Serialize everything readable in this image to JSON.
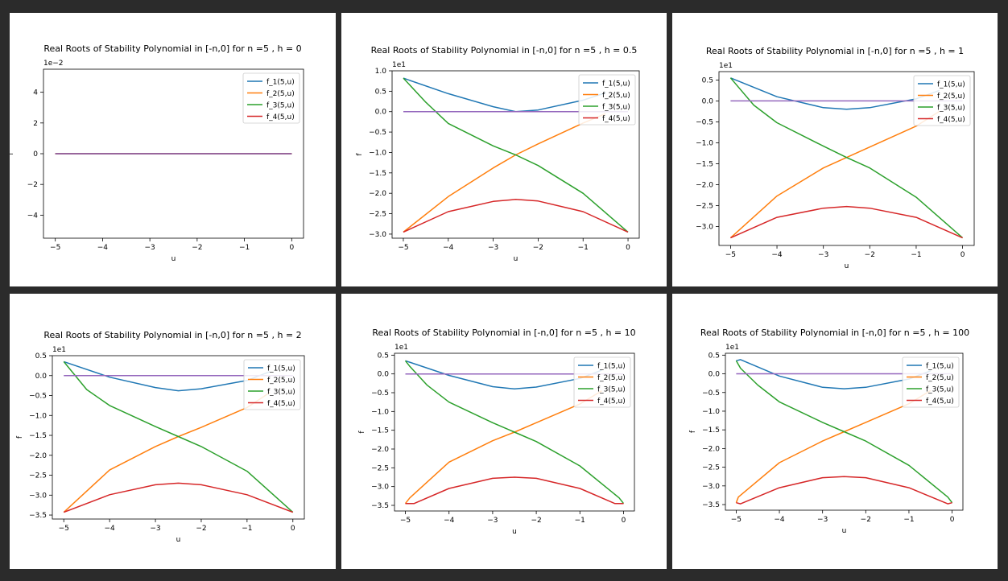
{
  "colors": {
    "page_background": "#2b2b2b",
    "panel_background": "#ffffff",
    "series": [
      "#1f77b4",
      "#ff7f0e",
      "#2ca02c",
      "#d62728",
      "#9467bd"
    ]
  },
  "chart_data": [
    {
      "type": "line",
      "title": "Real Roots of Stability Polynomial in [-n,0] for n =5 ,  h = 0",
      "xlabel": "u",
      "ylabel": "f",
      "offset_text": "1e−2",
      "xlim": [
        -5.25,
        0.25
      ],
      "ylim": [
        -5.5,
        5.5
      ],
      "xticks": [
        -5,
        -4,
        -3,
        -2,
        -1,
        0
      ],
      "xtick_labels": [
        "−5",
        "−4",
        "−3",
        "−2",
        "−1",
        "0"
      ],
      "yticks": [
        -4,
        -2,
        0,
        2,
        4
      ],
      "ytick_labels": [
        "−4",
        "−2",
        "0",
        "2",
        "4"
      ],
      "legend": [
        "f_1(5,u)",
        "f_2(5,u)",
        "f_3(5,u)",
        "f_4(5,u)"
      ],
      "legend_position": "upper right",
      "series": [
        {
          "name": "f_1(5,u)",
          "x": [
            -5,
            0
          ],
          "y": [
            0,
            0
          ]
        },
        {
          "name": "f_2(5,u)",
          "x": [
            -5,
            0
          ],
          "y": [
            0,
            0
          ]
        },
        {
          "name": "f_3(5,u)",
          "x": [
            -5,
            0
          ],
          "y": [
            0,
            0
          ]
        },
        {
          "name": "f_4(5,u)",
          "x": [
            -5,
            0
          ],
          "y": [
            0,
            0
          ]
        },
        {
          "x": [
            -5,
            0
          ],
          "y": [
            0,
            0
          ]
        }
      ]
    },
    {
      "type": "line",
      "title": "Real Roots of Stability Polynomial in [-n,0] for n =5 ,  h = 0.5",
      "xlabel": "u",
      "ylabel": "f",
      "offset_text": "1e1",
      "xlim": [
        -5.25,
        0.25
      ],
      "ylim": [
        -3.1,
        1.0
      ],
      "xticks": [
        -5,
        -4,
        -3,
        -2,
        -1,
        0
      ],
      "xtick_labels": [
        "−5",
        "−4",
        "−3",
        "−2",
        "−1",
        "0"
      ],
      "yticks": [
        -3.0,
        -2.5,
        -2.0,
        -1.5,
        -1.0,
        -0.5,
        0.0,
        0.5,
        1.0
      ],
      "ytick_labels": [
        "−3.0",
        "−2.5",
        "−2.0",
        "−1.5",
        "−1.0",
        "−0.5",
        "0.0",
        "0.5",
        "1.0"
      ],
      "legend": [
        "f_1(5,u)",
        "f_2(5,u)",
        "f_3(5,u)",
        "f_4(5,u)"
      ],
      "legend_position": "upper right",
      "series": [
        {
          "name": "f_1(5,u)",
          "x": [
            -5,
            -4,
            -3,
            -2.5,
            -2,
            -1,
            -0.5
          ],
          "y": [
            0.82,
            0.44,
            0.12,
            0.0,
            0.04,
            0.28,
            0.46
          ]
        },
        {
          "name": "f_2(5,u)",
          "x": [
            -5,
            -4,
            -3,
            -2.5,
            -2,
            -1,
            -0.5
          ],
          "y": [
            -2.95,
            -2.08,
            -1.38,
            -1.06,
            -0.79,
            -0.28,
            -0.05
          ]
        },
        {
          "name": "f_3(5,u)",
          "x": [
            -5,
            -4.5,
            -4,
            -3,
            -2.5,
            -2,
            -1,
            0
          ],
          "y": [
            0.82,
            0.23,
            -0.29,
            -0.84,
            -1.06,
            -1.32,
            -2.0,
            -2.95
          ]
        },
        {
          "name": "f_4(5,u)",
          "x": [
            -5,
            -4,
            -3,
            -2.5,
            -2,
            -1,
            0
          ],
          "y": [
            -2.95,
            -2.45,
            -2.2,
            -2.15,
            -2.19,
            -2.45,
            -2.95
          ]
        },
        {
          "x": [
            -5,
            0
          ],
          "y": [
            0,
            0
          ]
        }
      ]
    },
    {
      "type": "line",
      "title": "Real Roots of Stability Polynomial in [-n,0] for n =5 ,  h = 1",
      "xlabel": "u",
      "ylabel": "",
      "offset_text": "1e1",
      "xlim": [
        -5.25,
        0.25
      ],
      "ylim": [
        -3.45,
        0.7
      ],
      "xticks": [
        -5,
        -4,
        -3,
        -2,
        -1,
        0
      ],
      "xtick_labels": [
        "−5",
        "−4",
        "−3",
        "−2",
        "−1",
        "0"
      ],
      "yticks": [
        -3.0,
        -2.5,
        -2.0,
        -1.5,
        -1.0,
        -0.5,
        0.0,
        0.5
      ],
      "ytick_labels": [
        "−3.0",
        "−2.5",
        "−2.0",
        "−1.5",
        "−1.0",
        "−0.5",
        "0.0",
        "0.5"
      ],
      "legend": [
        "f_1(5,u)",
        "f_2(5,u)",
        "f_3(5,u)",
        "f_4(5,u)"
      ],
      "legend_position": "upper right",
      "series": [
        {
          "name": "f_1(5,u)",
          "x": [
            -5,
            -4,
            -3,
            -2.5,
            -2,
            -1,
            -0.5
          ],
          "y": [
            0.55,
            0.1,
            -0.16,
            -0.2,
            -0.16,
            0.05,
            0.25
          ]
        },
        {
          "name": "f_2(5,u)",
          "x": [
            -5,
            -4,
            -3,
            -2.5,
            -2,
            -1,
            -0.5
          ],
          "y": [
            -3.27,
            -2.27,
            -1.6,
            -1.35,
            -1.1,
            -0.6,
            -0.25
          ]
        },
        {
          "name": "f_3(5,u)",
          "x": [
            -5,
            -4.5,
            -4,
            -3,
            -2.5,
            -2,
            -1,
            0
          ],
          "y": [
            0.55,
            -0.1,
            -0.52,
            -1.08,
            -1.35,
            -1.6,
            -2.3,
            -3.27
          ]
        },
        {
          "name": "f_4(5,u)",
          "x": [
            -5,
            -4,
            -3,
            -2.5,
            -2,
            -1,
            0
          ],
          "y": [
            -3.27,
            -2.78,
            -2.56,
            -2.52,
            -2.56,
            -2.78,
            -3.27
          ]
        },
        {
          "x": [
            -5,
            0
          ],
          "y": [
            0,
            0
          ]
        }
      ]
    },
    {
      "type": "line",
      "title": "Real Roots of Stability Polynomial in [-n,0] for n =5 ,  h = 2",
      "xlabel": "u",
      "ylabel": "f",
      "offset_text": "1e1",
      "xlim": [
        -5.25,
        0.25
      ],
      "ylim": [
        -3.6,
        0.5
      ],
      "xticks": [
        -5,
        -4,
        -3,
        -2,
        -1,
        0
      ],
      "xtick_labels": [
        "−5",
        "−4",
        "−3",
        "−2",
        "−1",
        "0"
      ],
      "yticks": [
        -3.5,
        -3.0,
        -2.5,
        -2.0,
        -1.5,
        -1.0,
        -0.5,
        0.0,
        0.5
      ],
      "ytick_labels": [
        "−3.5",
        "−3.0",
        "−2.5",
        "−2.0",
        "−1.5",
        "−1.0",
        "−0.5",
        "0.0",
        "0.5"
      ],
      "legend": [
        "f_1(5,u)",
        "f_2(5,u)",
        "f_3(5,u)",
        "f_4(5,u)"
      ],
      "legend_position": "upper right",
      "series": [
        {
          "name": "f_1(5,u)",
          "x": [
            -5,
            -4,
            -3,
            -2.5,
            -2,
            -1,
            -0.5
          ],
          "y": [
            0.35,
            -0.04,
            -0.3,
            -0.38,
            -0.33,
            -0.12,
            0.1
          ]
        },
        {
          "name": "f_2(5,u)",
          "x": [
            -5,
            -4,
            -3,
            -2.5,
            -2,
            -1,
            -0.5
          ],
          "y": [
            -3.43,
            -2.37,
            -1.78,
            -1.53,
            -1.3,
            -0.8,
            -0.42
          ]
        },
        {
          "name": "f_3(5,u)",
          "x": [
            -5,
            -4.5,
            -4,
            -3,
            -2.5,
            -2,
            -1,
            0
          ],
          "y": [
            0.35,
            -0.35,
            -0.75,
            -1.28,
            -1.53,
            -1.78,
            -2.4,
            -3.43
          ]
        },
        {
          "name": "f_4(5,u)",
          "x": [
            -5,
            -4,
            -3,
            -2.5,
            -2,
            -1,
            0
          ],
          "y": [
            -3.43,
            -2.99,
            -2.74,
            -2.7,
            -2.74,
            -2.99,
            -3.43
          ]
        },
        {
          "x": [
            -5,
            0
          ],
          "y": [
            0,
            0
          ]
        }
      ]
    },
    {
      "type": "line",
      "title": "Real Roots of Stability Polynomial in [-n,0] for n =5 ,  h = 10",
      "xlabel": "u",
      "ylabel": "f",
      "offset_text": "1e1",
      "xlim": [
        -5.25,
        0.25
      ],
      "ylim": [
        -3.65,
        0.55
      ],
      "xticks": [
        -5,
        -4,
        -3,
        -2,
        -1,
        0
      ],
      "xtick_labels": [
        "−5",
        "−4",
        "−3",
        "−2",
        "−1",
        "0"
      ],
      "yticks": [
        -3.5,
        -3.0,
        -2.5,
        -2.0,
        -1.5,
        -1.0,
        -0.5,
        0.0,
        0.5
      ],
      "ytick_labels": [
        "−3.5",
        "−3.0",
        "−2.5",
        "−2.0",
        "−1.5",
        "−1.0",
        "−0.5",
        "0.0",
        "0.5"
      ],
      "legend": [
        "f_1(5,u)",
        "f_2(5,u)",
        "f_3(5,u)",
        "f_4(5,u)"
      ],
      "legend_position": "upper right",
      "series": [
        {
          "name": "f_1(5,u)",
          "x": [
            -5,
            -4,
            -3,
            -2.5,
            -2,
            -1,
            -0.5
          ],
          "y": [
            0.35,
            -0.04,
            -0.34,
            -0.4,
            -0.35,
            -0.12,
            0.1
          ]
        },
        {
          "name": "f_2(5,u)",
          "x": [
            -5,
            -4.9,
            -4,
            -3,
            -2.5,
            -2,
            -1,
            -0.5
          ],
          "y": [
            -3.45,
            -3.3,
            -2.35,
            -1.78,
            -1.55,
            -1.3,
            -0.8,
            -0.45
          ]
        },
        {
          "name": "f_3(5,u)",
          "x": [
            -5,
            -4.9,
            -4.5,
            -4,
            -3,
            -2.5,
            -2,
            -1,
            -0.1,
            0
          ],
          "y": [
            0.35,
            0.2,
            -0.3,
            -0.75,
            -1.3,
            -1.55,
            -1.8,
            -2.45,
            -3.3,
            -3.45
          ]
        },
        {
          "name": "f_4(5,u)",
          "x": [
            -5,
            -4.8,
            -4,
            -3,
            -2.5,
            -2,
            -1,
            -0.2,
            0
          ],
          "y": [
            -3.45,
            -3.45,
            -3.05,
            -2.78,
            -2.75,
            -2.78,
            -3.05,
            -3.45,
            -3.45
          ]
        },
        {
          "x": [
            -5,
            0
          ],
          "y": [
            0,
            0
          ]
        }
      ]
    },
    {
      "type": "line",
      "title": "Real Roots of Stability Polynomial in [-n,0] for n =5 ,  h = 100",
      "xlabel": "u",
      "ylabel": "f",
      "offset_text": "1e1",
      "xlim": [
        -5.25,
        0.25
      ],
      "ylim": [
        -3.65,
        0.55
      ],
      "xticks": [
        -5,
        -4,
        -3,
        -2,
        -1,
        0
      ],
      "xtick_labels": [
        "−5",
        "−4",
        "−3",
        "−2",
        "−1",
        "0"
      ],
      "yticks": [
        -3.5,
        -3.0,
        -2.5,
        -2.0,
        -1.5,
        -1.0,
        -0.5,
        0.0,
        0.5
      ],
      "ytick_labels": [
        "−3.5",
        "−3.0",
        "−2.5",
        "−2.0",
        "−1.5",
        "−1.0",
        "−0.5",
        "0.0",
        "0.5"
      ],
      "legend": [
        "f_1(5,u)",
        "f_2(5,u)",
        "f_3(5,u)",
        "f_4(5,u)"
      ],
      "legend_position": "upper right",
      "series": [
        {
          "name": "f_1(5,u)",
          "x": [
            -5,
            -4.9,
            -4,
            -3,
            -2.5,
            -2,
            -1,
            -0.5
          ],
          "y": [
            0.35,
            0.38,
            -0.06,
            -0.36,
            -0.4,
            -0.36,
            -0.14,
            0.08
          ]
        },
        {
          "name": "f_2(5,u)",
          "x": [
            -5,
            -4.95,
            -4,
            -3,
            -2.5,
            -2,
            -1,
            -0.5
          ],
          "y": [
            -3.45,
            -3.3,
            -2.38,
            -1.8,
            -1.55,
            -1.3,
            -0.8,
            -0.45
          ]
        },
        {
          "name": "f_3(5,u)",
          "x": [
            -5,
            -4.9,
            -4.5,
            -4,
            -3,
            -2.5,
            -2,
            -1,
            -0.1,
            0
          ],
          "y": [
            0.35,
            0.15,
            -0.3,
            -0.75,
            -1.3,
            -1.55,
            -1.8,
            -2.45,
            -3.3,
            -3.45
          ]
        },
        {
          "name": "f_4(5,u)",
          "x": [
            -5,
            -4.9,
            -4,
            -3,
            -2.5,
            -2,
            -1,
            -0.1,
            0
          ],
          "y": [
            -3.45,
            -3.48,
            -3.05,
            -2.78,
            -2.75,
            -2.78,
            -3.05,
            -3.48,
            -3.45
          ]
        },
        {
          "x": [
            -5,
            0
          ],
          "y": [
            0,
            0
          ]
        }
      ]
    }
  ]
}
